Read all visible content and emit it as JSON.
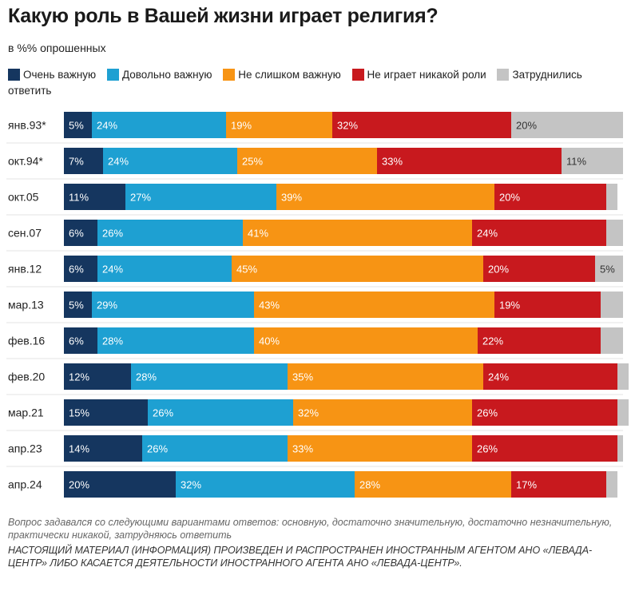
{
  "chart_data": {
    "type": "bar",
    "orientation": "horizontal",
    "stacked": true,
    "title": "Какую роль в Вашей жизни играет религия?",
    "subtitle": "в %% опрошенных",
    "categories": [
      "янв.93*",
      "окт.94*",
      "окт.05",
      "сен.07",
      "янв.12",
      "мар.13",
      "фев.16",
      "фев.20",
      "мар.21",
      "апр.23",
      "апр.24"
    ],
    "series": [
      {
        "name": "Очень важную",
        "color": "#15365f",
        "values": [
          5,
          7,
          11,
          6,
          6,
          5,
          6,
          12,
          15,
          14,
          20
        ]
      },
      {
        "name": "Довольно важную",
        "color": "#1ea0d2",
        "values": [
          24,
          24,
          27,
          26,
          24,
          29,
          28,
          28,
          26,
          26,
          32
        ]
      },
      {
        "name": "Не слишком важную",
        "color": "#f79414",
        "values": [
          19,
          25,
          39,
          41,
          45,
          43,
          40,
          35,
          32,
          33,
          28
        ]
      },
      {
        "name": "Не играет никакой роли",
        "color": "#c8191e",
        "values": [
          32,
          33,
          20,
          24,
          20,
          19,
          22,
          24,
          26,
          26,
          17
        ]
      },
      {
        "name": "Затруднились ответить",
        "color": "#c4c4c4",
        "values": [
          20,
          11,
          2,
          3,
          5,
          4,
          4,
          2,
          2,
          1,
          2
        ]
      }
    ],
    "labels": [
      [
        "5%",
        "7%",
        "11%",
        "6%",
        "6%",
        "5%",
        "6%",
        "12%",
        "15%",
        "14%",
        "20%"
      ],
      [
        "24%",
        "24%",
        "27%",
        "26%",
        "24%",
        "29%",
        "28%",
        "28%",
        "26%",
        "26%",
        "32%"
      ],
      [
        "19%",
        "25%",
        "39%",
        "41%",
        "45%",
        "43%",
        "40%",
        "35%",
        "32%",
        "33%",
        "28%"
      ],
      [
        "32%",
        "33%",
        "20%",
        "24%",
        "20%",
        "19%",
        "22%",
        "24%",
        "26%",
        "26%",
        "17%"
      ],
      [
        "20%",
        "11%",
        "",
        "",
        "5%",
        "",
        "",
        "",
        "",
        "",
        ""
      ]
    ],
    "xlim": [
      0,
      100
    ],
    "grid": false,
    "legend_position": "top"
  },
  "note": "Вопрос задавался со следующими вариантами ответов: основную, достаточно значительную, достаточно незначительную, практически никакой, затрудняюсь ответить",
  "disclaimer": "НАСТОЯЩИЙ МАТЕРИАЛ (ИНФОРМАЦИЯ) ПРОИЗВЕДЕН И РАСПРОСТРАНЕН ИНОСТРАННЫМ АГЕНТОМ АНО «ЛЕВАДА-ЦЕНТР» ЛИБО КАСАЕТСЯ ДЕЯТЕЛЬНОСТИ ИНОСТРАННОГО АГЕНТА АНО «ЛЕВАДА-ЦЕНТР»."
}
